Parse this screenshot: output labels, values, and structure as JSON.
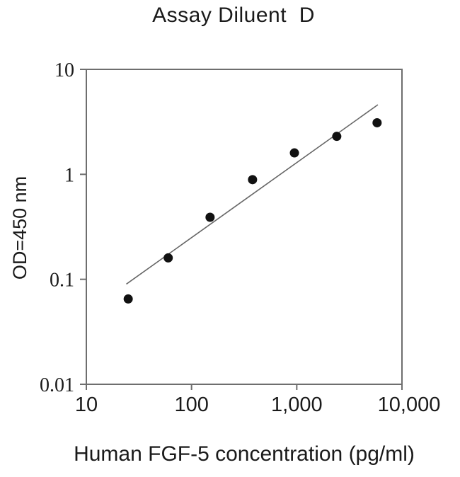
{
  "title": "Assay Diluent  D",
  "colors": {
    "background": "#ffffff",
    "text": "#1a1a1a",
    "axis": "#6e6e6e",
    "dot": "#111111",
    "trend_line": "#666666"
  },
  "chart_data": {
    "type": "scatter",
    "title": "Assay Diluent  D",
    "xlabel": "Human FGF-5 concentration (pg/ml)",
    "ylabel": "OD=450 nm",
    "x_scale": "log",
    "y_scale": "log",
    "xlim": [
      10,
      10000
    ],
    "ylim": [
      0.01,
      10
    ],
    "grid": false,
    "legend": null,
    "x_ticks": [
      {
        "value": 10,
        "label": "10"
      },
      {
        "value": 100,
        "label": "100"
      },
      {
        "value": 1000,
        "label": "1,000"
      },
      {
        "value": 10000,
        "label": "10,000"
      }
    ],
    "y_ticks": [
      {
        "value": 10,
        "label": "10"
      },
      {
        "value": 1,
        "label": "1"
      },
      {
        "value": 0.1,
        "label": "0.1"
      },
      {
        "value": 0.01,
        "label": "0.01"
      }
    ],
    "points": [
      {
        "x": 25,
        "y": 0.065
      },
      {
        "x": 60,
        "y": 0.16
      },
      {
        "x": 150,
        "y": 0.39
      },
      {
        "x": 380,
        "y": 0.89
      },
      {
        "x": 950,
        "y": 1.6
      },
      {
        "x": 2400,
        "y": 2.3
      },
      {
        "x": 5800,
        "y": 3.1
      }
    ],
    "trend_line": {
      "x1": 24,
      "y1": 0.09,
      "x2": 5900,
      "y2": 4.6
    }
  }
}
